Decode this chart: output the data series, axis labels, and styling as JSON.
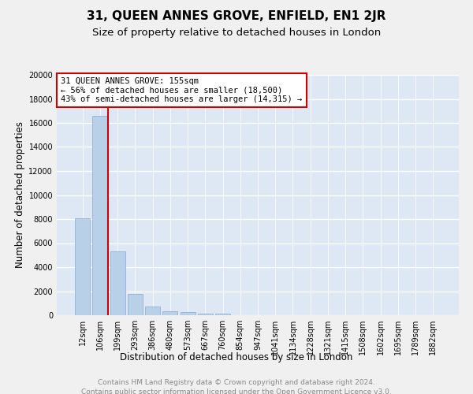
{
  "title": "31, QUEEN ANNES GROVE, ENFIELD, EN1 2JR",
  "subtitle": "Size of property relative to detached houses in London",
  "xlabel": "Distribution of detached houses by size in London",
  "ylabel": "Number of detached properties",
  "bin_labels": [
    "12sqm",
    "106sqm",
    "199sqm",
    "293sqm",
    "386sqm",
    "480sqm",
    "573sqm",
    "667sqm",
    "760sqm",
    "854sqm",
    "947sqm",
    "1041sqm",
    "1134sqm",
    "1228sqm",
    "1321sqm",
    "1415sqm",
    "1508sqm",
    "1602sqm",
    "1695sqm",
    "1789sqm",
    "1882sqm"
  ],
  "bar_values": [
    8050,
    16600,
    5300,
    1750,
    700,
    350,
    250,
    160,
    150,
    0,
    0,
    0,
    0,
    0,
    0,
    0,
    0,
    0,
    0,
    0,
    0
  ],
  "bar_color": "#b8d0e8",
  "bar_edge_color": "#88aace",
  "background_color": "#dde8f4",
  "grid_color": "#ffffff",
  "vline_x": 1.45,
  "vline_color": "#cc0000",
  "annotation_line1": "31 QUEEN ANNES GROVE: 155sqm",
  "annotation_line2": "← 56% of detached houses are smaller (18,500)",
  "annotation_line3": "43% of semi-detached houses are larger (14,315) →",
  "annotation_box_color": "#cc0000",
  "annotation_fill": "#ffffff",
  "ylim": [
    0,
    20000
  ],
  "yticks": [
    0,
    2000,
    4000,
    6000,
    8000,
    10000,
    12000,
    14000,
    16000,
    18000,
    20000
  ],
  "footer_line1": "Contains HM Land Registry data © Crown copyright and database right 2024.",
  "footer_line2": "Contains public sector information licensed under the Open Government Licence v3.0.",
  "title_fontsize": 11,
  "subtitle_fontsize": 9.5,
  "axis_label_fontsize": 8.5,
  "tick_fontsize": 7,
  "annotation_fontsize": 7.5,
  "footer_fontsize": 6.5
}
